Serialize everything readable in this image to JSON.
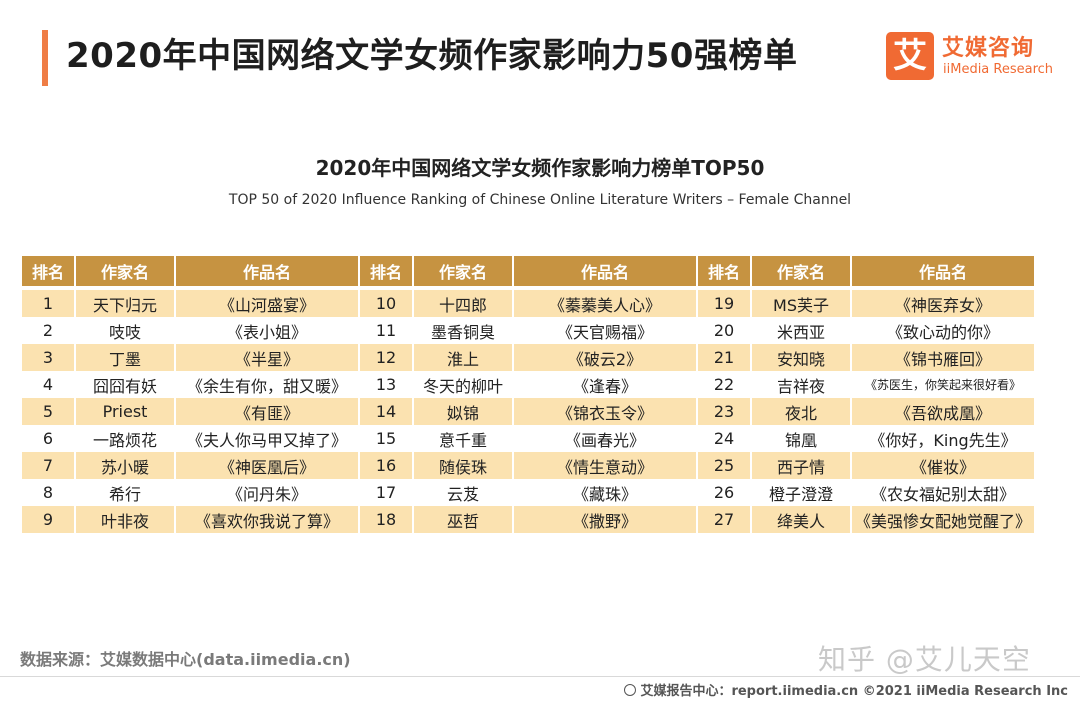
{
  "header": {
    "title": "2020年中国网络文学女频作家影响力50强榜单",
    "logo_mark": "艾",
    "logo_cn": "艾媒咨询",
    "logo_en": "iiMedia Research"
  },
  "chart": {
    "title": "2020年中国网络文学女频作家影响力榜单TOP50",
    "subtitle": "TOP 50 of 2020 Influence Ranking of Chinese Online Literature Writers – Female Channel"
  },
  "table": {
    "headers": {
      "rank": "排名",
      "author": "作家名",
      "work": "作品名"
    },
    "rows": [
      [
        {
          "rank": "1",
          "author": "天下归元",
          "work": "《山河盛宴》"
        },
        {
          "rank": "10",
          "author": "十四郎",
          "work": "《蓁蓁美人心》"
        },
        {
          "rank": "19",
          "author": "MS芙子",
          "work": "《神医弃女》"
        }
      ],
      [
        {
          "rank": "2",
          "author": "吱吱",
          "work": "《表小姐》"
        },
        {
          "rank": "11",
          "author": "墨香铜臭",
          "work": "《天官赐福》"
        },
        {
          "rank": "20",
          "author": "米西亚",
          "work": "《致心动的你》"
        }
      ],
      [
        {
          "rank": "3",
          "author": "丁墨",
          "work": "《半星》"
        },
        {
          "rank": "12",
          "author": "淮上",
          "work": "《破云2》"
        },
        {
          "rank": "21",
          "author": "安知晓",
          "work": "《锦书雁回》"
        }
      ],
      [
        {
          "rank": "4",
          "author": "囧囧有妖",
          "work": "《余生有你，甜又暖》"
        },
        {
          "rank": "13",
          "author": "冬天的柳叶",
          "work": "《逢春》"
        },
        {
          "rank": "22",
          "author": "吉祥夜",
          "work": "《苏医生，你笑起来很好看》"
        }
      ],
      [
        {
          "rank": "5",
          "author": "Priest",
          "work": "《有匪》"
        },
        {
          "rank": "14",
          "author": "姒锦",
          "work": "《锦衣玉令》"
        },
        {
          "rank": "23",
          "author": "夜北",
          "work": "《吾欲成凰》"
        }
      ],
      [
        {
          "rank": "6",
          "author": "一路烦花",
          "work": "《夫人你马甲又掉了》"
        },
        {
          "rank": "15",
          "author": "意千重",
          "work": "《画春光》"
        },
        {
          "rank": "24",
          "author": "锦凰",
          "work": "《你好，King先生》"
        }
      ],
      [
        {
          "rank": "7",
          "author": "苏小暖",
          "work": "《神医凰后》"
        },
        {
          "rank": "16",
          "author": "随侯珠",
          "work": "《情生意动》"
        },
        {
          "rank": "25",
          "author": "西子情",
          "work": "《催妆》"
        }
      ],
      [
        {
          "rank": "8",
          "author": "希行",
          "work": "《问丹朱》"
        },
        {
          "rank": "17",
          "author": "云芨",
          "work": "《藏珠》"
        },
        {
          "rank": "26",
          "author": "橙子澄澄",
          "work": "《农女福妃别太甜》"
        }
      ],
      [
        {
          "rank": "9",
          "author": "叶非夜",
          "work": "《喜欢你我说了算》"
        },
        {
          "rank": "18",
          "author": "巫哲",
          "work": "《撒野》"
        },
        {
          "rank": "27",
          "author": "绛美人",
          "work": "《美强惨女配她觉醒了》"
        }
      ]
    ]
  },
  "footer": {
    "source": "数据来源：艾媒数据中心(data.iimedia.cn)",
    "watermark": "知乎 @艾儿天空",
    "report": "艾媒报告中心：report.iimedia.cn  ©2021  iiMedia Research  Inc"
  },
  "colors": {
    "accent": "#ef7d45",
    "header_bg": "#c69341",
    "row_band": "#fbe2b0",
    "brand": "#f06a33"
  }
}
